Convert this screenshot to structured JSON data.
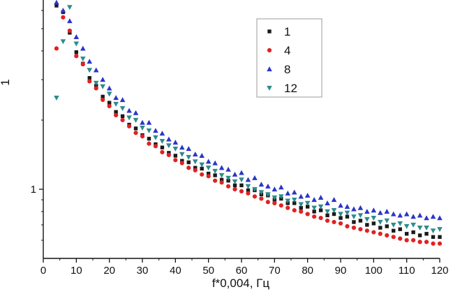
{
  "figure": {
    "xlabel": "f*0,004,  Гц",
    "ylabel": "1"
  },
  "chart_data": {
    "type": "scatter",
    "title": "",
    "xlabel": "f*0,004,  Гц",
    "ylabel": "1",
    "x_scale": "linear",
    "y_scale": "log",
    "xlim": [
      0,
      120
    ],
    "ylim": [
      0.5,
      6.7
    ],
    "x_ticks": [
      0,
      10,
      20,
      30,
      40,
      50,
      60,
      70,
      80,
      90,
      100,
      110,
      120
    ],
    "x_minor_ticks": [
      5,
      15,
      25,
      35,
      45,
      55,
      65,
      75,
      85,
      95,
      105,
      115
    ],
    "y_ticks": [
      1
    ],
    "y_minor_ticks": [
      0.6,
      0.7,
      0.8,
      0.9,
      2,
      3,
      4,
      5,
      6
    ],
    "grid": false,
    "legend_position": "upper-center-right",
    "x": [
      4,
      6,
      8,
      10,
      12,
      14,
      16,
      18,
      20,
      22,
      24,
      26,
      28,
      30,
      32,
      34,
      36,
      38,
      40,
      42,
      44,
      46,
      48,
      50,
      52,
      54,
      56,
      58,
      60,
      62,
      64,
      66,
      68,
      70,
      72,
      74,
      76,
      78,
      80,
      82,
      84,
      86,
      88,
      90,
      92,
      94,
      96,
      98,
      100,
      102,
      104,
      106,
      108,
      110,
      112,
      114,
      116,
      118,
      120
    ],
    "series": [
      {
        "name": "1",
        "marker": "square",
        "color": "#1a1a1a",
        "y": [
          6.3,
          5.9,
          4.8,
          3.95,
          3.52,
          3.05,
          2.82,
          2.53,
          2.38,
          2.17,
          2.08,
          1.91,
          1.84,
          1.72,
          1.66,
          1.57,
          1.52,
          1.44,
          1.4,
          1.33,
          1.31,
          1.24,
          1.23,
          1.17,
          1.15,
          1.1,
          1.09,
          1.04,
          1.04,
          0.99,
          0.99,
          0.95,
          0.94,
          0.9,
          0.91,
          0.87,
          0.87,
          0.83,
          0.84,
          0.8,
          0.81,
          0.77,
          0.78,
          0.75,
          0.76,
          0.72,
          0.73,
          0.7,
          0.71,
          0.68,
          0.69,
          0.66,
          0.67,
          0.64,
          0.65,
          0.63,
          0.64,
          0.62,
          0.62
        ]
      },
      {
        "name": "4",
        "marker": "circle",
        "color": "#e02222",
        "y": [
          4.1,
          5.6,
          4.9,
          3.8,
          3.5,
          2.95,
          2.75,
          2.45,
          2.3,
          2.1,
          2.0,
          1.88,
          1.76,
          1.7,
          1.58,
          1.54,
          1.45,
          1.41,
          1.34,
          1.3,
          1.24,
          1.21,
          1.16,
          1.14,
          1.09,
          1.07,
          1.03,
          1.0,
          0.98,
          0.96,
          0.93,
          0.91,
          0.88,
          0.87,
          0.85,
          0.83,
          0.81,
          0.8,
          0.78,
          0.76,
          0.75,
          0.73,
          0.72,
          0.71,
          0.69,
          0.68,
          0.67,
          0.66,
          0.65,
          0.64,
          0.63,
          0.62,
          0.61,
          0.6,
          0.6,
          0.59,
          0.59,
          0.58,
          0.58
        ]
      },
      {
        "name": "8",
        "marker": "triangle-up",
        "color": "#2b35c8",
        "y": [
          6.5,
          6.0,
          5.4,
          4.6,
          4.1,
          3.6,
          3.3,
          3.0,
          2.75,
          2.5,
          2.45,
          2.2,
          2.15,
          1.95,
          1.95,
          1.8,
          1.75,
          1.65,
          1.6,
          1.52,
          1.5,
          1.42,
          1.4,
          1.32,
          1.3,
          1.24,
          1.22,
          1.16,
          1.18,
          1.1,
          1.12,
          1.05,
          1.03,
          1.0,
          1.02,
          0.96,
          0.97,
          0.93,
          0.94,
          0.9,
          0.92,
          0.87,
          0.9,
          0.85,
          0.84,
          0.82,
          0.83,
          0.8,
          0.81,
          0.79,
          0.8,
          0.78,
          0.77,
          0.78,
          0.76,
          0.77,
          0.75,
          0.76,
          0.75
        ]
      },
      {
        "name": "12",
        "marker": "triangle-down",
        "color": "#2e8b8b",
        "y": [
          2.5,
          4.4,
          6.2,
          4.3,
          3.7,
          3.3,
          2.9,
          2.8,
          2.6,
          2.35,
          2.25,
          2.05,
          2.0,
          1.85,
          1.8,
          1.68,
          1.62,
          1.55,
          1.5,
          1.42,
          1.38,
          1.32,
          1.28,
          1.24,
          1.2,
          1.15,
          1.12,
          1.08,
          1.1,
          1.03,
          1.0,
          0.97,
          0.95,
          0.92,
          0.93,
          0.89,
          0.9,
          0.86,
          0.87,
          0.83,
          0.84,
          0.8,
          0.81,
          0.78,
          0.79,
          0.76,
          0.77,
          0.74,
          0.75,
          0.72,
          0.73,
          0.7,
          0.71,
          0.69,
          0.7,
          0.68,
          0.68,
          0.66,
          0.67
        ]
      }
    ]
  }
}
